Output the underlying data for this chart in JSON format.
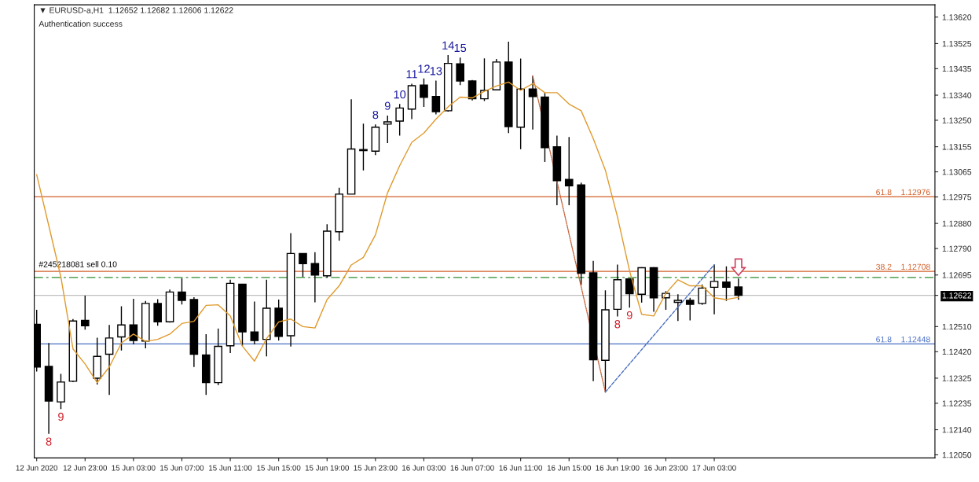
{
  "chart_data": {
    "type": "candlestick",
    "title": "▼ EURUSD-a,H1  1.12652 1.12682 1.12606 1.12622",
    "subtitle": "Authentication success",
    "categories": [
      "12 Jun 2020",
      null,
      null,
      null,
      "12 Jun 23:00",
      null,
      null,
      null,
      "15 Jun 03:00",
      null,
      null,
      null,
      "15 Jun 07:00",
      null,
      null,
      null,
      "15 Jun 11:00",
      null,
      null,
      null,
      "15 Jun 15:00",
      null,
      null,
      null,
      "15 Jun 19:00",
      null,
      null,
      null,
      "15 Jun 23:00",
      null,
      null,
      null,
      "16 Jun 03:00",
      null,
      null,
      null,
      "16 Jun 07:00",
      null,
      null,
      null,
      "16 Jun 11:00",
      null,
      null,
      null,
      "16 Jun 15:00",
      null,
      null,
      null,
      "16 Jun 19:00",
      null,
      null,
      null,
      "16 Jun 23:00",
      null,
      null,
      null,
      "17 Jun 03:00",
      null,
      null
    ],
    "ohlc": [
      [
        1.12518,
        1.1257,
        1.12349,
        1.12365
      ],
      [
        1.12367,
        1.12451,
        1.12125,
        1.12243
      ],
      [
        1.1224,
        1.1234,
        1.12214,
        1.12311
      ],
      [
        1.12314,
        1.12537,
        1.12311,
        1.1253
      ],
      [
        1.12532,
        1.12621,
        1.12499,
        1.12513
      ],
      [
        1.12325,
        1.1247,
        1.12302,
        1.12403
      ],
      [
        1.12411,
        1.12516,
        1.12265,
        1.12469
      ],
      [
        1.12473,
        1.12583,
        1.12424,
        1.12516
      ],
      [
        1.12516,
        1.1261,
        1.12446,
        1.1246
      ],
      [
        1.12458,
        1.12602,
        1.12432,
        1.12593
      ],
      [
        1.12593,
        1.12608,
        1.12513,
        1.12527
      ],
      [
        1.12527,
        1.12643,
        1.12524,
        1.12634
      ],
      [
        1.12634,
        1.12683,
        1.12589,
        1.12604
      ],
      [
        1.12607,
        1.12615,
        1.12365,
        1.12411
      ],
      [
        1.12408,
        1.12483,
        1.12265,
        1.12309
      ],
      [
        1.12309,
        1.12503,
        1.123,
        1.12439
      ],
      [
        1.12441,
        1.12678,
        1.12415,
        1.12665
      ],
      [
        1.12662,
        1.12663,
        1.1244,
        1.12491
      ],
      [
        1.12491,
        1.126,
        1.12446,
        1.1246
      ],
      [
        1.12464,
        1.12678,
        1.12403,
        1.12576
      ],
      [
        1.12576,
        1.12607,
        1.1246,
        1.12475
      ],
      [
        1.12477,
        1.12845,
        1.12438,
        1.12772
      ],
      [
        1.12772,
        1.12772,
        1.12688,
        1.12736
      ],
      [
        1.12736,
        1.12777,
        1.12597,
        1.12695
      ],
      [
        1.12692,
        1.12877,
        1.12686,
        1.12852
      ],
      [
        1.1285,
        1.13008,
        1.12818,
        1.12985
      ],
      [
        1.12985,
        1.13325,
        1.12985,
        1.13147
      ],
      [
        1.13145,
        1.13238,
        1.1307,
        1.13141
      ],
      [
        1.13139,
        1.13235,
        1.13125,
        1.13225
      ],
      [
        1.13236,
        1.13267,
        1.13168,
        1.13244
      ],
      [
        1.13247,
        1.13308,
        1.13195,
        1.13294
      ],
      [
        1.1329,
        1.13381,
        1.13254,
        1.13374
      ],
      [
        1.13376,
        1.134,
        1.13298,
        1.13332
      ],
      [
        1.13335,
        1.13392,
        1.13271,
        1.13281
      ],
      [
        1.13284,
        1.13484,
        1.13281,
        1.13454
      ],
      [
        1.13452,
        1.13475,
        1.13376,
        1.13391
      ],
      [
        1.13391,
        1.13394,
        1.13321,
        1.13327
      ],
      [
        1.13327,
        1.13472,
        1.13319,
        1.13357
      ],
      [
        1.13359,
        1.1347,
        1.13359,
        1.13459
      ],
      [
        1.13459,
        1.13532,
        1.13204,
        1.13227
      ],
      [
        1.13225,
        1.13471,
        1.13146,
        1.13362
      ],
      [
        1.13362,
        1.13409,
        1.13217,
        1.13335
      ],
      [
        1.13333,
        1.13348,
        1.131,
        1.13152
      ],
      [
        1.13155,
        1.13195,
        1.12945,
        1.13033
      ],
      [
        1.13038,
        1.1319,
        1.12945,
        1.13015
      ],
      [
        1.13018,
        1.13026,
        1.12659,
        1.12701
      ],
      [
        1.12703,
        1.12746,
        1.12314,
        1.12391
      ],
      [
        1.12389,
        1.1264,
        1.12275,
        1.1257
      ],
      [
        1.12572,
        1.12732,
        1.12546,
        1.12678
      ],
      [
        1.12681,
        1.12683,
        1.12578,
        1.12628
      ],
      [
        1.12626,
        1.12723,
        1.12596,
        1.12721
      ],
      [
        1.12721,
        1.12723,
        1.12563,
        1.12613
      ],
      [
        1.12613,
        1.12637,
        1.1257,
        1.12629
      ],
      [
        1.12597,
        1.12626,
        1.1253,
        1.12604
      ],
      [
        1.12604,
        1.12613,
        1.12532,
        1.1259
      ],
      [
        1.12593,
        1.12661,
        1.12588,
        1.12648
      ],
      [
        1.12651,
        1.12732,
        1.12554,
        1.12672
      ],
      [
        1.1267,
        1.12726,
        1.12602,
        1.12651
      ],
      [
        1.12652,
        1.12682,
        1.12606,
        1.12622
      ]
    ],
    "value_labels": [
      null,
      "8",
      "9",
      null,
      null,
      null,
      null,
      null,
      null,
      null,
      null,
      null,
      null,
      null,
      null,
      null,
      null,
      null,
      null,
      null,
      null,
      null,
      null,
      null,
      null,
      null,
      null,
      null,
      "8",
      "9",
      "10",
      "11",
      "12",
      "13",
      "14",
      "15",
      null,
      null,
      null,
      null,
      null,
      null,
      null,
      null,
      null,
      null,
      null,
      null,
      "8",
      "9",
      null,
      null,
      null,
      null,
      null,
      null,
      null,
      null,
      null
    ],
    "series": [
      {
        "type": "line",
        "color": "#e09a2c",
        "line_style": "solid",
        "values": [
          1.13055,
          1.12872,
          1.12688,
          1.1243,
          1.12376,
          1.12309,
          1.12365,
          1.12451,
          1.12483,
          1.12457,
          1.12464,
          1.12483,
          1.12521,
          1.12529,
          1.12586,
          1.12588,
          1.12548,
          1.1244,
          1.12386,
          1.12467,
          1.12527,
          1.12537,
          1.1251,
          1.12505,
          1.12607,
          1.12656,
          1.12731,
          1.12758,
          1.12839,
          1.1299,
          1.13087,
          1.13171,
          1.13204,
          1.13254,
          1.13298,
          1.13333,
          1.1333,
          1.13354,
          1.13373,
          1.13387,
          1.13357,
          1.13381,
          1.13349,
          1.13349,
          1.13308,
          1.13284,
          1.13184,
          1.13071,
          1.12904,
          1.1271,
          1.12554,
          1.12548,
          1.12629,
          1.12678,
          1.12656,
          1.12656,
          1.12613,
          1.12607,
          1.12615
        ]
      },
      {
        "type": "line",
        "color": "#c8643c",
        "line_style": "dotted",
        "values": [
          null,
          null,
          null,
          null,
          null,
          null,
          null,
          null,
          null,
          null,
          null,
          null,
          null,
          null,
          null,
          null,
          null,
          null,
          null,
          null,
          null,
          null,
          null,
          null,
          null,
          null,
          null,
          null,
          null,
          null,
          null,
          null,
          null,
          null,
          null,
          null,
          null,
          null,
          null,
          null,
          null,
          1.13409,
          null,
          null,
          null,
          null,
          null,
          1.12275,
          null,
          null,
          null,
          null,
          null,
          null,
          null,
          null,
          null,
          null,
          null
        ]
      },
      {
        "type": "line",
        "color": "#4a6fc4",
        "line_style": "dashed",
        "values": [
          null,
          null,
          null,
          null,
          null,
          null,
          null,
          null,
          null,
          null,
          null,
          null,
          null,
          null,
          null,
          null,
          null,
          null,
          null,
          null,
          null,
          null,
          null,
          null,
          null,
          null,
          null,
          null,
          null,
          null,
          null,
          null,
          null,
          null,
          null,
          null,
          null,
          null,
          null,
          null,
          null,
          null,
          null,
          null,
          null,
          null,
          null,
          1.12275,
          null,
          null,
          null,
          null,
          null,
          null,
          null,
          null,
          1.12732,
          null,
          null
        ]
      }
    ],
    "ref_lines": [
      {
        "axis": "y",
        "value": 1.12976,
        "label": "61.8    1.12976",
        "color": "#d2602a",
        "line_style": "solid"
      },
      {
        "axis": "y",
        "value": 1.12708,
        "label": "38.2    1.12708",
        "color": "#d2602a",
        "line_style": "solid"
      },
      {
        "axis": "y",
        "value": 1.12448,
        "label": "61.8    1.12448",
        "color": "#4a6fc4",
        "line_style": "solid"
      },
      {
        "axis": "y",
        "value": 1.12686,
        "label": "#245218081 sell 0.10",
        "color": "#2e8b2e",
        "line_style": "dashdot"
      },
      {
        "axis": "y",
        "value": 1.12622,
        "color": "#c0c0c0",
        "line_style": "solid"
      }
    ],
    "ylim": [
      1.12039,
      1.13664
    ],
    "yticks": [
      {
        "value": 1.1362,
        "label": "1.13620"
      },
      1.13525,
      1.13435,
      {
        "value": 1.1334,
        "label": "1.13340"
      },
      {
        "value": 1.1325,
        "label": "1.13250"
      },
      1.13155,
      1.13065,
      1.12975,
      {
        "value": 1.1288,
        "label": "1.12880"
      },
      {
        "value": 1.1279,
        "label": "1.12790"
      },
      1.12695,
      {
        "value": 1.12622,
        "label": "1.12622"
      },
      {
        "value": 1.1251,
        "label": "1.12510"
      },
      {
        "value": 1.1242,
        "label": "1.12420"
      },
      1.12325,
      1.12235,
      {
        "value": 1.1214,
        "label": "1.12140"
      },
      {
        "value": 1.1205,
        "label": "1.12050"
      }
    ],
    "grid": false,
    "legend": false
  }
}
